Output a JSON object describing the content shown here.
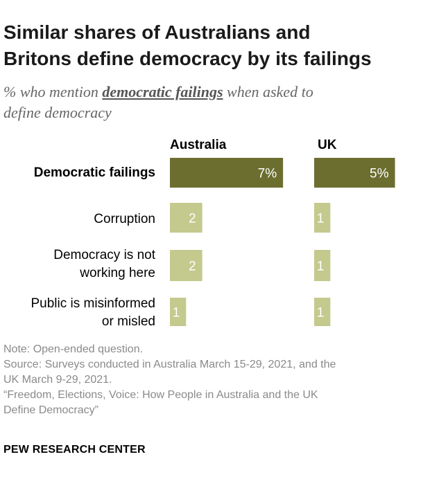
{
  "title_lines": [
    "Similar shares of Australians and",
    "Britons define democracy by its failings"
  ],
  "subtitle": {
    "prefix": "% who mention ",
    "highlight": "democratic failings",
    "suffix_line1": " when asked to",
    "line2": "define democracy"
  },
  "chart_data": {
    "type": "bar",
    "title": "Similar shares of Australians and Britons define democracy by its failings",
    "categories": [
      "Democratic failings",
      "Corruption",
      "Democracy is not working here",
      "Public is misinformed or misled"
    ],
    "category_lines": [
      [
        "Democratic failings"
      ],
      [
        "Corruption"
      ],
      [
        "Democracy is not",
        "working here"
      ],
      [
        "Public is misinformed",
        "or misled"
      ]
    ],
    "series": [
      {
        "name": "Australia",
        "values": [
          7,
          2,
          2,
          1
        ],
        "labels": [
          "7%",
          "2",
          "2",
          "1"
        ]
      },
      {
        "name": "UK",
        "values": [
          5,
          1,
          1,
          1
        ],
        "labels": [
          "5%",
          "1",
          "1",
          "1"
        ]
      }
    ],
    "xlabel": "",
    "ylabel": "",
    "colors": {
      "total": "#6b6e2f",
      "sub": "#c4c98d"
    }
  },
  "notes": [
    "Note: Open-ended question.",
    "Source: Surveys conducted in Australia March 15-29, 2021, and the",
    "UK March 9-29, 2021.",
    "“Freedom, Elections, Voice: How People in Australia and the UK",
    "Define Democracy”"
  ],
  "source_label": "PEW RESEARCH CENTER"
}
